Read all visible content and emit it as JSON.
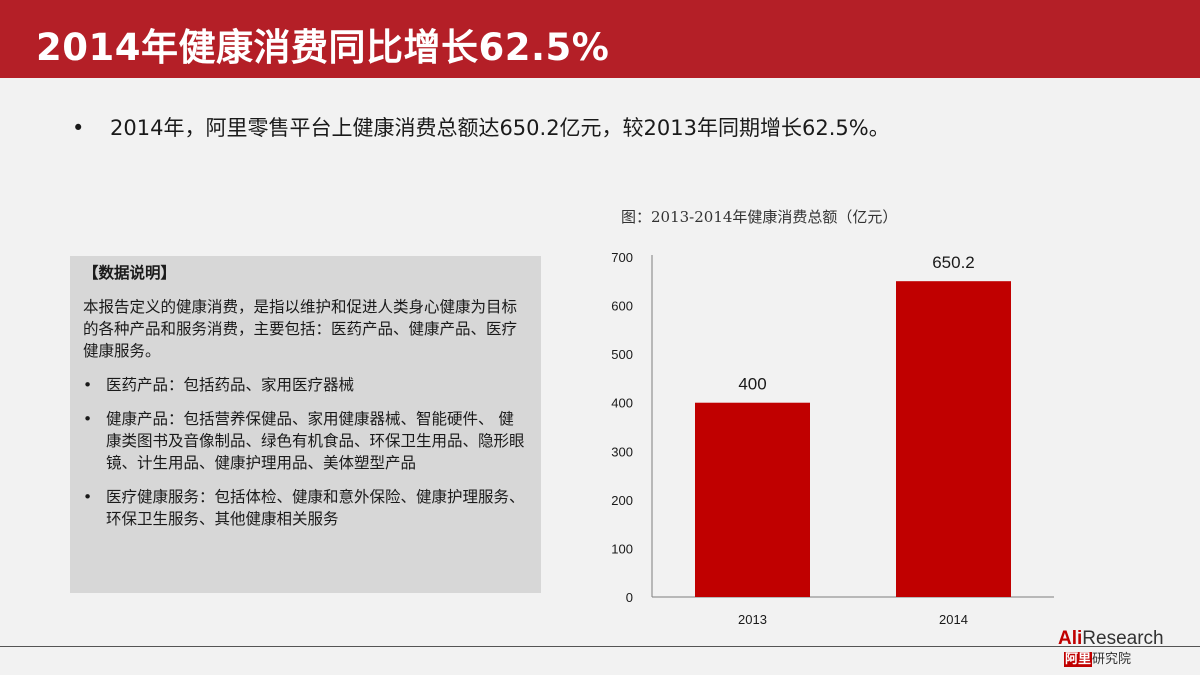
{
  "header": {
    "title": "2014年健康消费同比增长62.5%"
  },
  "summary": {
    "bullet": "•",
    "text": "2014年，阿里零售平台上健康消费总额达650.2亿元，较2013年同期增长62.5%。"
  },
  "note": {
    "title": "【数据说明】",
    "intro": "本报告定义的健康消费，是指以维护和促进人类身心健康为目标的各种产品和服务消费，主要包括：医药产品、健康产品、医疗健康服务。",
    "bullet": "•",
    "items": [
      "医药产品：包括药品、家用医疗器械",
      "健康产品：包括营养保健品、家用健康器械、智能硬件、 健康类图书及音像制品、绿色有机食品、环保卫生用品、隐形眼镜、计生用品、健康护理用品、美体塑型产品",
      "医疗健康服务：包括体检、健康和意外保险、健康护理服务、环保卫生服务、其他健康相关服务"
    ]
  },
  "chart_data": {
    "type": "bar",
    "title": "图：2013-2014年健康消费总额（亿元）",
    "categories": [
      "2013",
      "2014"
    ],
    "values": [
      400,
      650.2
    ],
    "data_labels": [
      "400",
      "650.2"
    ],
    "ylim": [
      0,
      700
    ],
    "yticks": [
      0,
      100,
      200,
      300,
      400,
      500,
      600,
      700
    ],
    "ytick_labels": [
      "0",
      "100",
      "200",
      "300",
      "400",
      "500",
      "600",
      "700"
    ],
    "xlabel": "",
    "ylabel": "",
    "bar_color": "#c00000",
    "grid": false,
    "legend": "none"
  },
  "logo": {
    "ali": "Ali",
    "research": "Research",
    "cn_a": "阿里",
    "cn_b": "研究院"
  },
  "colors": {
    "accent": "#b41f27",
    "panel": "#d7d7d7",
    "background": "#f2f2f2"
  }
}
